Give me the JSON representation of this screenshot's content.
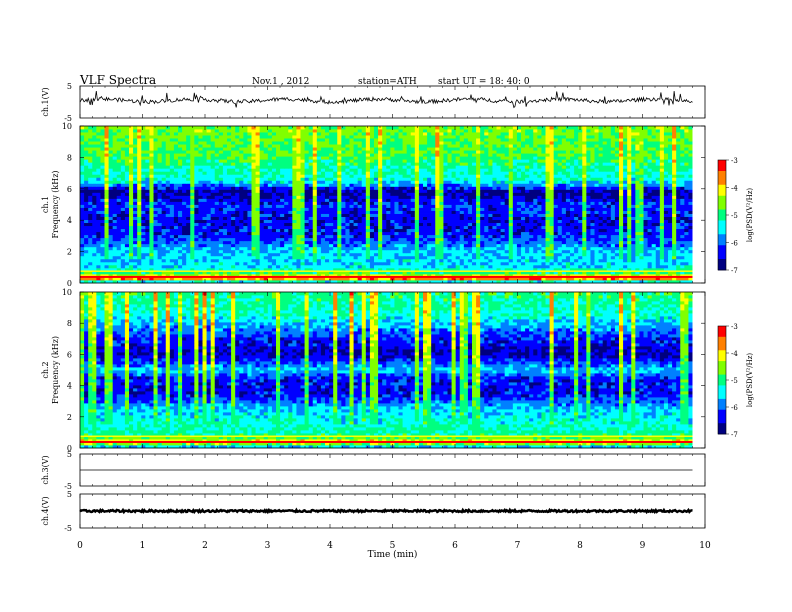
{
  "header": {
    "title": "VLF  Spectra",
    "date": "Nov.1  , 2012",
    "station": "station=ATH",
    "start": "start  UT  =    18: 40: 0"
  },
  "colorbar": {
    "label": "log(PSD(V²/Hz)",
    "ticks": [
      "-3",
      "-4",
      "-5",
      "-6",
      "-7"
    ],
    "range": [
      -7,
      -3
    ],
    "colors": [
      "#000080",
      "#0000ff",
      "#0080ff",
      "#00ffff",
      "#00ff80",
      "#80ff00",
      "#ffff00",
      "#ff8000",
      "#ff0000",
      "#ffffff"
    ]
  },
  "chart_data": [
    {
      "type": "line",
      "panel": "ch1-waveform",
      "ylabel": "ch.1(V)",
      "yticks": [
        "5",
        "-5"
      ],
      "ylim": [
        -5,
        5
      ],
      "baseline": 0.5,
      "xlim": [
        0,
        10
      ],
      "data_end_min": 9.8
    },
    {
      "type": "heatmap",
      "panel": "ch1-spectrogram",
      "ylabel_channel": "ch.1",
      "ylabel": "Frequency  (kHz)",
      "yticks": [
        "10",
        "8",
        "6",
        "4",
        "2",
        "0"
      ],
      "ylim": [
        0,
        10
      ],
      "xlim": [
        0,
        10
      ],
      "data_end_min": 9.8,
      "background_profile_log_psd": [
        {
          "f": 0.0,
          "v": -6.2
        },
        {
          "f": 0.3,
          "v": -3.6
        },
        {
          "f": 0.6,
          "v": -4.8
        },
        {
          "f": 1.0,
          "v": -5.5
        },
        {
          "f": 2.0,
          "v": -5.6
        },
        {
          "f": 3.0,
          "v": -6.3
        },
        {
          "f": 4.0,
          "v": -6.4
        },
        {
          "f": 5.0,
          "v": -6.2
        },
        {
          "f": 5.8,
          "v": -6.8
        },
        {
          "f": 6.5,
          "v": -5.4
        },
        {
          "f": 8.0,
          "v": -4.9
        },
        {
          "f": 10.0,
          "v": -4.6
        }
      ]
    },
    {
      "type": "heatmap",
      "panel": "ch2-spectrogram",
      "ylabel_channel": "ch.2",
      "ylabel": "Frequency  (kHz)",
      "yticks": [
        "10",
        "8",
        "6",
        "4",
        "2",
        "0"
      ],
      "ylim": [
        0,
        10
      ],
      "xlim": [
        0,
        10
      ],
      "data_end_min": 9.8,
      "background_profile_log_psd": [
        {
          "f": 0.0,
          "v": -6.0
        },
        {
          "f": 0.4,
          "v": -4.0
        },
        {
          "f": 0.8,
          "v": -5.0
        },
        {
          "f": 1.5,
          "v": -5.3
        },
        {
          "f": 2.5,
          "v": -5.6
        },
        {
          "f": 3.5,
          "v": -6.4
        },
        {
          "f": 4.5,
          "v": -6.3
        },
        {
          "f": 5.0,
          "v": -5.6
        },
        {
          "f": 6.0,
          "v": -6.6
        },
        {
          "f": 7.0,
          "v": -6.3
        },
        {
          "f": 8.5,
          "v": -5.3
        },
        {
          "f": 10.0,
          "v": -5.0
        }
      ]
    },
    {
      "type": "line",
      "panel": "ch3-waveform",
      "ylabel": "ch.3(V)",
      "yticks": [
        "5",
        "-5"
      ],
      "ylim": [
        -5,
        5
      ],
      "baseline": 0.0,
      "xlim": [
        0,
        10
      ],
      "data_end_min": 9.8
    },
    {
      "type": "line",
      "panel": "ch4-waveform",
      "ylabel": "ch.4(V)",
      "yticks": [
        "5",
        "-5"
      ],
      "ylim": [
        -5,
        5
      ],
      "baseline": 0.0,
      "xlim": [
        0,
        10
      ],
      "data_end_min": 9.8
    }
  ],
  "xaxis": {
    "label": "Time  (min)",
    "ticks": [
      "0",
      "1",
      "2",
      "3",
      "4",
      "5",
      "6",
      "7",
      "8",
      "9",
      "10"
    ]
  }
}
